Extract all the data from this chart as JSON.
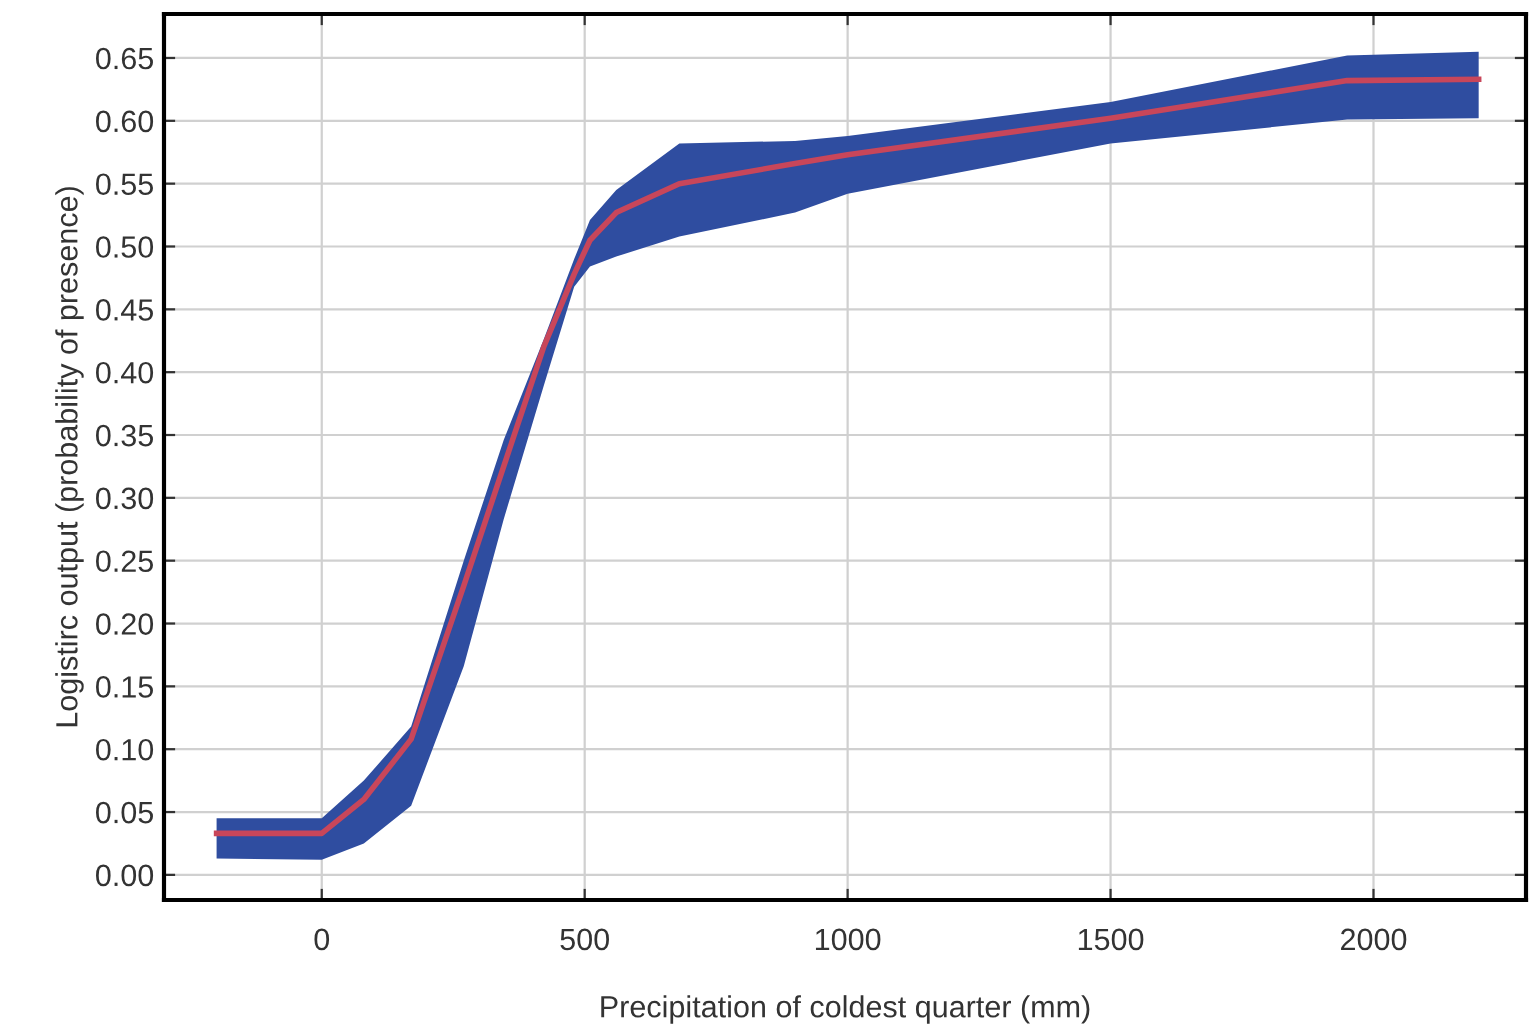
{
  "chart_data": {
    "type": "line",
    "xlabel": "Precipitation of coldest quarter (mm)",
    "ylabel": "Logistirc output (probability of presence)",
    "x": [
      -200,
      0,
      80,
      170,
      270,
      346,
      422,
      480,
      510,
      560,
      680,
      900,
      1000,
      1500,
      1950,
      2200
    ],
    "series": [
      {
        "color": "#c8465a",
        "values": [
          0.033,
          0.033,
          0.06,
          0.108,
          0.23,
          0.325,
          0.42,
          0.478,
          0.505,
          0.527,
          0.55,
          0.566,
          0.573,
          0.602,
          0.632,
          0.633
        ],
        "lower": [
          0.013,
          0.012,
          0.025,
          0.055,
          0.166,
          0.283,
          0.389,
          0.468,
          0.484,
          0.492,
          0.508,
          0.527,
          0.542,
          0.582,
          0.601,
          0.602
        ],
        "upper": [
          0.045,
          0.045,
          0.075,
          0.118,
          0.25,
          0.346,
          0.426,
          0.49,
          0.521,
          0.545,
          0.582,
          0.584,
          0.588,
          0.615,
          0.652,
          0.655
        ]
      }
    ],
    "xlim": [
      -300,
      2290
    ],
    "xticks": [
      0,
      500,
      1000,
      1500,
      2000
    ],
    "ylim": [
      -0.02,
      0.685
    ],
    "yticks": [
      {
        "value": 0,
        "label": "0.00"
      },
      {
        "value": 0.05,
        "label": "0.05"
      },
      {
        "value": 0.1,
        "label": "0.10"
      },
      {
        "value": 0.15,
        "label": "0.15"
      },
      {
        "value": 0.2,
        "label": "0.20"
      },
      {
        "value": 0.25,
        "label": "0.25"
      },
      {
        "value": 0.3,
        "label": "0.30"
      },
      {
        "value": 0.35,
        "label": "0.35"
      },
      {
        "value": 0.4,
        "label": "0.40"
      },
      {
        "value": 0.45,
        "label": "0.45"
      },
      {
        "value": 0.5,
        "label": "0.50"
      },
      {
        "value": 0.55,
        "label": "0.55"
      },
      {
        "value": 0.6,
        "label": "0.60"
      },
      {
        "value": 0.65,
        "label": "0.65"
      }
    ],
    "grid": true,
    "line_style": "solid",
    "marker": "none"
  }
}
